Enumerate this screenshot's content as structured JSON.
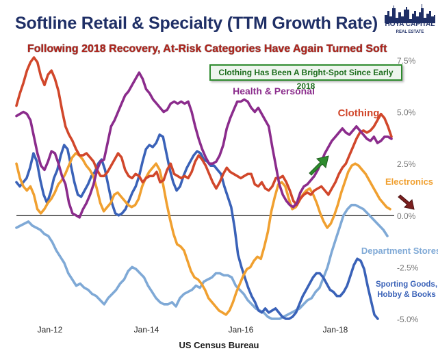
{
  "title": "Softline Retail & Specialty (TTM Growth Rate)",
  "subtitle": "Following 2018 Recovery, At-Risk Categories Have Again Turned Soft",
  "callout": "Clothing Has Been A Bright-Spot Since Early 2018",
  "source": "US Census Bureau",
  "logo": {
    "line1": "HOYA CAPITAL",
    "line2": "REAL ESTATE"
  },
  "chart_data": {
    "type": "line",
    "x_ticks": [
      "Jan-12",
      "Jan-14",
      "Jan-16",
      "Jan-18"
    ],
    "y_ticks": [
      "7.5%",
      "5.0%",
      "2.5%",
      "0.0%",
      "-2.5%",
      "-5.0%"
    ],
    "ylim": [
      -5,
      7.5
    ],
    "series": [
      {
        "name": "Clothing",
        "color": "#d1472b",
        "values": [
          5.3,
          5.9,
          6.4,
          7.0,
          7.4,
          7.7,
          7.4,
          6.7,
          6.3,
          6.8,
          7.0,
          6.6,
          6.0,
          5.1,
          4.3,
          3.9,
          3.6,
          3.2,
          2.9,
          2.9,
          3.0,
          2.8,
          2.6,
          2.2,
          1.9,
          1.9,
          2.1,
          2.4,
          2.7,
          3.0,
          2.8,
          2.2,
          1.9,
          1.8,
          2.0,
          1.9,
          1.6,
          1.8,
          1.9,
          1.9,
          2.1,
          1.6,
          1.7,
          2.2,
          2.5,
          2.0,
          1.9,
          1.8,
          1.9,
          1.8,
          2.1,
          2.6,
          2.9,
          2.7,
          2.4,
          2.0,
          1.6,
          1.3,
          1.6,
          2.0,
          2.3,
          2.1,
          2.0,
          1.9,
          1.8,
          1.9,
          2.0,
          2.0,
          1.5,
          1.4,
          1.6,
          1.3,
          1.2,
          1.4,
          1.8,
          1.8,
          1.9,
          1.6,
          1.2,
          0.7,
          0.5,
          0.8,
          1.0,
          1.1,
          1.0,
          1.2,
          1.3,
          1.4,
          1.2,
          1.0,
          1.3,
          1.6,
          2.0,
          2.3,
          2.5,
          2.9,
          3.3,
          3.7,
          4.0,
          4.1,
          4.0,
          4.1,
          4.3,
          4.6,
          4.9,
          4.7,
          4.3,
          3.8
        ]
      },
      {
        "name": "Health & Personal",
        "color": "#8b2c8c",
        "values": [
          4.8,
          4.9,
          5.0,
          4.9,
          4.6,
          3.8,
          3.0,
          2.4,
          2.2,
          2.6,
          3.1,
          3.0,
          2.5,
          1.9,
          1.5,
          0.6,
          0.1,
          0.0,
          -0.1,
          0.3,
          0.6,
          1.0,
          1.5,
          2.2,
          2.6,
          2.7,
          3.5,
          4.3,
          4.6,
          5.0,
          5.4,
          5.8,
          6.0,
          6.3,
          6.6,
          6.9,
          6.6,
          6.1,
          5.9,
          5.6,
          5.4,
          5.2,
          5.0,
          5.1,
          5.4,
          5.5,
          5.4,
          5.5,
          5.4,
          5.5,
          5.0,
          4.3,
          3.7,
          3.2,
          2.8,
          2.5,
          2.5,
          2.6,
          2.9,
          3.4,
          4.2,
          4.7,
          5.1,
          5.5,
          5.5,
          5.6,
          5.5,
          5.2,
          5.0,
          5.2,
          4.9,
          4.6,
          4.3,
          3.3,
          2.4,
          1.5,
          1.0,
          0.7,
          0.5,
          0.4,
          0.6,
          1.1,
          1.4,
          1.5,
          1.7,
          1.9,
          2.2,
          2.6,
          3.0,
          3.3,
          3.6,
          3.8,
          4.0,
          4.2,
          4.0,
          3.9,
          4.1,
          4.3,
          4.1,
          3.9,
          3.7,
          3.6,
          3.8,
          3.5,
          3.6,
          3.8,
          3.8,
          3.7
        ]
      },
      {
        "name": "Electronics",
        "color": "#f0a030",
        "values": [
          2.5,
          1.8,
          1.4,
          1.2,
          1.4,
          1.0,
          0.3,
          0.1,
          0.3,
          0.6,
          0.8,
          1.1,
          1.5,
          1.7,
          2.0,
          2.4,
          2.8,
          3.0,
          2.9,
          2.7,
          2.4,
          2.2,
          1.9,
          1.3,
          0.6,
          0.2,
          0.4,
          0.6,
          1.0,
          1.1,
          0.9,
          0.7,
          0.5,
          0.4,
          0.5,
          0.8,
          1.4,
          1.8,
          2.1,
          2.3,
          2.5,
          2.2,
          1.5,
          0.6,
          -0.2,
          -0.9,
          -1.4,
          -1.5,
          -1.7,
          -2.2,
          -2.7,
          -3.0,
          -3.1,
          -3.3,
          -3.6,
          -4.0,
          -4.2,
          -4.4,
          -4.6,
          -4.7,
          -4.8,
          -4.6,
          -4.2,
          -3.7,
          -3.3,
          -2.9,
          -2.6,
          -2.5,
          -2.2,
          -2.0,
          -2.1,
          -1.5,
          -0.8,
          0.2,
          0.9,
          1.5,
          1.6,
          1.4,
          0.8,
          0.3,
          0.4,
          0.7,
          1.0,
          1.2,
          1.3,
          1.0,
          0.6,
          0.1,
          -0.3,
          -0.6,
          -0.4,
          0.0,
          0.5,
          1.1,
          1.6,
          2.1,
          2.4,
          2.5,
          2.4,
          2.2,
          2.0,
          1.7,
          1.4,
          1.1,
          0.8,
          0.6,
          0.4,
          0.3
        ]
      },
      {
        "name": "Department Stores",
        "color": "#7fa9d6",
        "values": [
          -0.6,
          -0.5,
          -0.4,
          -0.3,
          -0.5,
          -0.6,
          -0.7,
          -0.9,
          -1.0,
          -1.3,
          -1.7,
          -2.0,
          -2.3,
          -2.8,
          -3.1,
          -3.4,
          -3.3,
          -3.5,
          -3.6,
          -3.8,
          -3.9,
          -4.1,
          -4.3,
          -4.0,
          -3.8,
          -3.6,
          -3.3,
          -3.1,
          -2.7,
          -2.5,
          -2.6,
          -2.8,
          -3.0,
          -3.4,
          -3.7,
          -4.0,
          -4.2,
          -4.3,
          -4.3,
          -4.2,
          -4.4,
          -4.0,
          -3.8,
          -3.7,
          -3.6,
          -3.4,
          -3.5,
          -3.2,
          -3.1,
          -3.0,
          -2.8,
          -2.8,
          -2.9,
          -2.9,
          -3.0,
          -3.4,
          -3.6,
          -3.8,
          -4.1,
          -4.3,
          -4.5,
          -4.6,
          -4.7,
          -4.9,
          -5.0,
          -5.0,
          -5.0,
          -4.9,
          -4.8,
          -4.7,
          -4.6,
          -4.5,
          -4.3,
          -4.1,
          -4.0,
          -3.7,
          -3.5,
          -3.0,
          -2.5,
          -1.8,
          -1.2,
          -0.6,
          0.0,
          0.3,
          0.5,
          0.5,
          0.4,
          0.3,
          0.1,
          -0.1,
          -0.3,
          -0.5,
          -0.7,
          -1.0
        ]
      },
      {
        "name": "Sporting Goods, Hobby & Books",
        "color": "#3a62b8",
        "values": [
          1.6,
          1.4,
          1.6,
          1.8,
          2.3,
          3.0,
          2.6,
          1.7,
          1.0,
          0.6,
          1.1,
          1.8,
          2.2,
          2.9,
          3.4,
          3.2,
          2.4,
          1.6,
          1.0,
          0.9,
          1.2,
          1.5,
          1.9,
          2.1,
          2.5,
          2.7,
          2.2,
          1.4,
          0.6,
          0.1,
          0.0,
          0.1,
          0.3,
          0.7,
          1.1,
          1.4,
          1.9,
          2.6,
          3.2,
          3.4,
          3.3,
          3.5,
          3.9,
          3.8,
          3.0,
          2.2,
          1.6,
          1.2,
          1.4,
          1.9,
          2.3,
          2.6,
          2.9,
          3.1,
          3.0,
          2.7,
          2.6,
          2.4,
          2.4,
          2.2,
          2.0,
          1.4,
          0.9,
          0.4,
          -0.6,
          -1.9,
          -2.5,
          -3.0,
          -3.5,
          -3.9,
          -4.2,
          -4.6,
          -4.7,
          -4.5,
          -4.7,
          -4.6,
          -4.5,
          -4.7,
          -4.9,
          -5.0,
          -5.0,
          -4.9,
          -4.7,
          -4.3,
          -3.9,
          -3.6,
          -3.3,
          -3.0,
          -2.8,
          -2.8,
          -3.0,
          -3.3,
          -3.6,
          -3.7,
          -3.9,
          -3.9,
          -3.7,
          -3.4,
          -2.9,
          -2.4,
          -2.1,
          -2.2,
          -2.6,
          -3.4,
          -4.1,
          -4.8,
          -5.0
        ]
      }
    ]
  }
}
